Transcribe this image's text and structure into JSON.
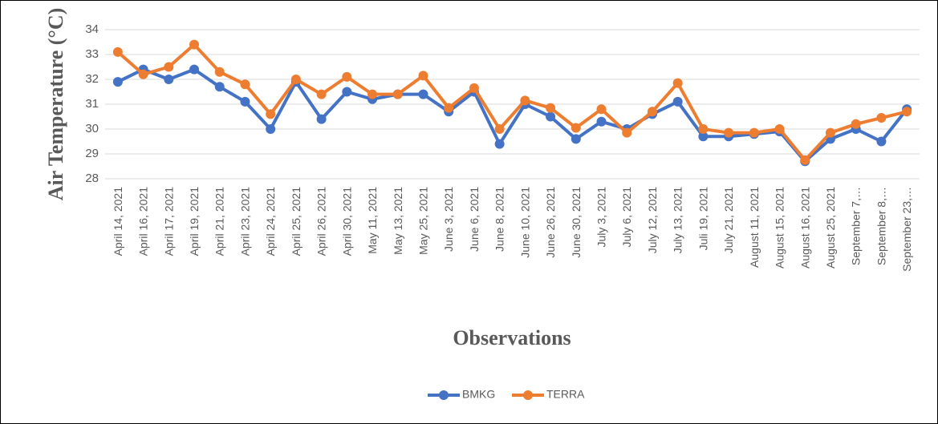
{
  "chart_data": {
    "type": "line",
    "y_label": "Air Temperature (°C)",
    "x_label": "Observations",
    "categories": [
      "April 14, 2021",
      "April 16, 2021",
      "April 17, 2021",
      "April 19, 2021",
      "April 21, 2021",
      "April 23, 2021",
      "April 24, 2021",
      "April 25, 2021",
      "April 26, 2021",
      "April 30, 2021",
      "May 11, 2021",
      "May 13, 2021",
      "May 25, 2021",
      "June 3, 2021",
      "June 6, 2021",
      "June 8, 2021",
      "June 10, 2021",
      "June 26, 2021",
      "June 30, 2021",
      "July 3, 2021",
      "July 6, 2021",
      "July 12, 2021",
      "July 13, 2021",
      "Juli 19, 2021",
      "July 21, 2021",
      "August 11, 2021",
      "August 15, 2021",
      "August 16, 2021",
      "August 25, 2021",
      "September 7,…",
      "September 8,…",
      "September 23,…"
    ],
    "series": [
      {
        "name": "BMKG",
        "color": "#4472c4",
        "values": [
          31.9,
          32.4,
          32.0,
          32.4,
          31.7,
          31.1,
          30.0,
          31.9,
          30.4,
          31.5,
          31.2,
          31.4,
          31.4,
          30.7,
          31.5,
          29.4,
          31.0,
          30.5,
          29.6,
          30.3,
          30.0,
          30.6,
          31.1,
          29.7,
          29.7,
          29.8,
          29.9,
          28.7,
          29.6,
          30.0,
          29.5,
          30.8
        ]
      },
      {
        "name": "TERRA",
        "color": "#ed7d31",
        "values": [
          33.1,
          32.2,
          32.5,
          33.4,
          32.3,
          31.8,
          30.6,
          32.0,
          31.4,
          32.1,
          31.4,
          31.4,
          32.15,
          30.85,
          31.65,
          30.0,
          31.15,
          30.85,
          30.05,
          30.8,
          29.85,
          30.7,
          31.85,
          30.0,
          29.85,
          29.85,
          30.0,
          28.75,
          29.85,
          30.2,
          30.45,
          30.7
        ]
      }
    ],
    "ylim": [
      28,
      34
    ],
    "yticks": [
      28,
      29,
      30,
      31,
      32,
      33,
      34
    ],
    "grid": true,
    "legend": "bottom"
  }
}
